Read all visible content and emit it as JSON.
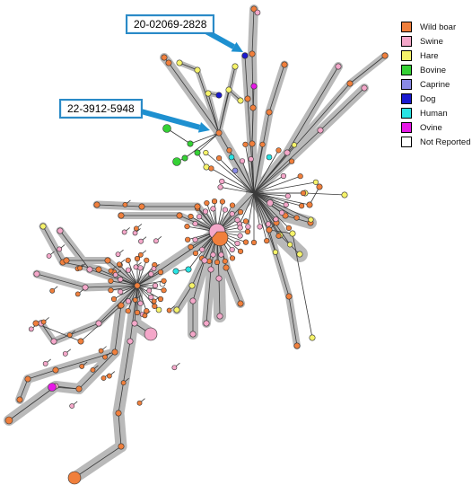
{
  "callouts": [
    {
      "label": "20-02069-2828"
    },
    {
      "label": "22-3912-5948"
    }
  ],
  "legend": [
    {
      "label": "Wild boar",
      "color": "#f07f3c"
    },
    {
      "label": "Swine",
      "color": "#f4a7c9"
    },
    {
      "label": "Hare",
      "color": "#f6f36a"
    },
    {
      "label": "Bovine",
      "color": "#35d135"
    },
    {
      "label": "Caprine",
      "color": "#8a8ae6"
    },
    {
      "label": "Dog",
      "color": "#1a1ad0"
    },
    {
      "label": "Human",
      "color": "#29e3e3"
    },
    {
      "label": "Ovine",
      "color": "#e619e6"
    },
    {
      "label": "Not Reported",
      "color": "#ffffff"
    }
  ],
  "colors": {
    "halo": "#b9b9b9",
    "edge": "#3a3a3a",
    "callout_border": "#2a8ac7",
    "arrow": "#1e90d0"
  }
}
